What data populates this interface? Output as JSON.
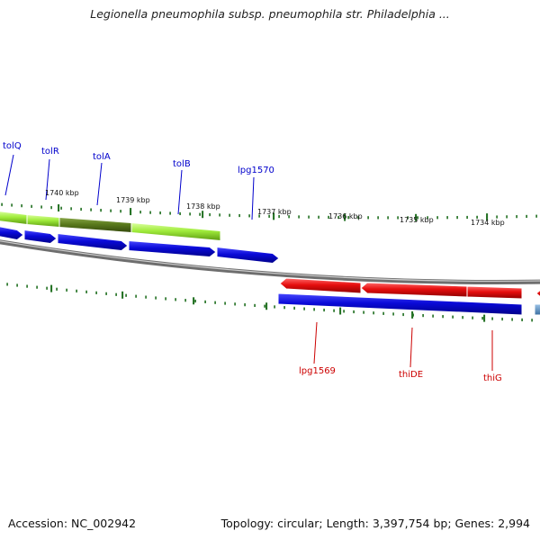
{
  "title": "Legionella pneumophila subsp. pneumophila str. Philadelphia ...",
  "accession_label": "Accession: NC_002942",
  "topology_label": "Topology: circular; Length: 3,397,754 bp; Genes: 2,994",
  "colors": {
    "top_label": "#0000cc",
    "bottom_label": "#cc0000",
    "tick": "#1e6e1e",
    "backbone": "#8a8a8a",
    "blue_gene": "#0a0ad8",
    "green_gene": "#a0ec3c",
    "dark_green_gene": "#5a7a1c",
    "red_gene": "#e60e0e"
  },
  "scale_labels": [
    "1740 kbp",
    "1739 kbp",
    "1738 kbp",
    "1737 kbp",
    "1736 kbp",
    "1735 kbp",
    "1734 kbp"
  ],
  "top_gene_labels": [
    "tolQ",
    "tolR",
    "tolA",
    "tolB",
    "lpg1570"
  ],
  "bottom_gene_labels": [
    "lpg1569",
    "thiDE",
    "thiG"
  ]
}
